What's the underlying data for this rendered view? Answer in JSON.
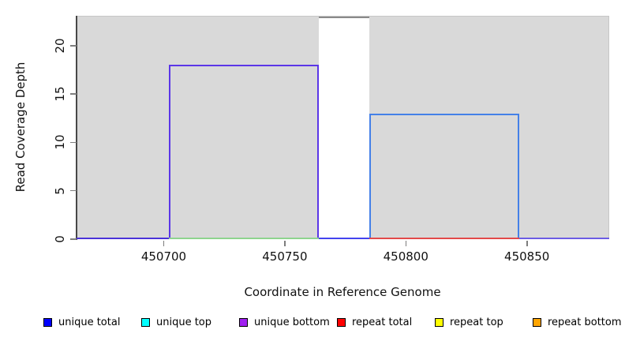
{
  "chart_data": {
    "type": "area",
    "subtype": "read-coverage-step-plot",
    "title": "",
    "xlabel": "Coordinate in Reference Genome",
    "ylabel": "Read Coverage Depth",
    "xlim": [
      450664,
      450884
    ],
    "ylim": [
      0,
      23.1
    ],
    "grid": false,
    "plot_bg": "#d9d9d9",
    "plot_border": "#c6c6c6",
    "axis_line_color": "#474747",
    "tick_color": "#7d7d7d",
    "x_ticks": [
      {
        "value": 450700,
        "label": "450700"
      },
      {
        "value": 450750,
        "label": "450750"
      },
      {
        "value": 450800,
        "label": "450800"
      },
      {
        "value": 450850,
        "label": "450850"
      }
    ],
    "y_ticks": [
      {
        "value": 0,
        "label": "0"
      },
      {
        "value": 5,
        "label": "5"
      },
      {
        "value": 10,
        "label": "10"
      },
      {
        "value": 15,
        "label": "15"
      },
      {
        "value": 20,
        "label": "20"
      }
    ],
    "blocks": [
      {
        "name": "masked-region-block",
        "x_start": 450764,
        "x_end": 450785,
        "depth": 23,
        "fill": "#ffffff",
        "outline": "#8a8a8a",
        "outline_sides": "top"
      },
      {
        "name": "unique-coverage-left-block",
        "x_start": 450702,
        "x_end": 450764,
        "depth": 18,
        "fill": null,
        "outline": "#5b36e8"
      },
      {
        "name": "unique-coverage-right-block",
        "x_start": 450785,
        "x_end": 450847,
        "depth": 13,
        "fill": null,
        "outline": "#4480e8"
      }
    ],
    "baseline_segments": [
      {
        "x_start": 450664,
        "x_end": 450702,
        "depth": 0,
        "color": "#4b33d8"
      },
      {
        "x_start": 450702,
        "x_end": 450764,
        "depth": 0,
        "color": "#8fd48f"
      },
      {
        "x_start": 450764,
        "x_end": 450785,
        "depth": 0,
        "color": "#4343ee"
      },
      {
        "x_start": 450785,
        "x_end": 450847,
        "depth": 0,
        "color": "#e24a4a"
      },
      {
        "x_start": 450847,
        "x_end": 450884,
        "depth": 0,
        "color": "#6c5ce4"
      }
    ],
    "legend": {
      "position": "bottom",
      "swatch_border": "#000000",
      "entries": [
        {
          "label": "unique total",
          "color": "#0000ff"
        },
        {
          "label": "unique top",
          "color": "#00ffff"
        },
        {
          "label": "unique bottom",
          "color": "#a020f0"
        },
        {
          "label": "repeat total",
          "color": "#ff0000"
        },
        {
          "label": "repeat top",
          "color": "#ffff00"
        },
        {
          "label": "repeat bottom",
          "color": "#ffa500"
        }
      ]
    }
  }
}
